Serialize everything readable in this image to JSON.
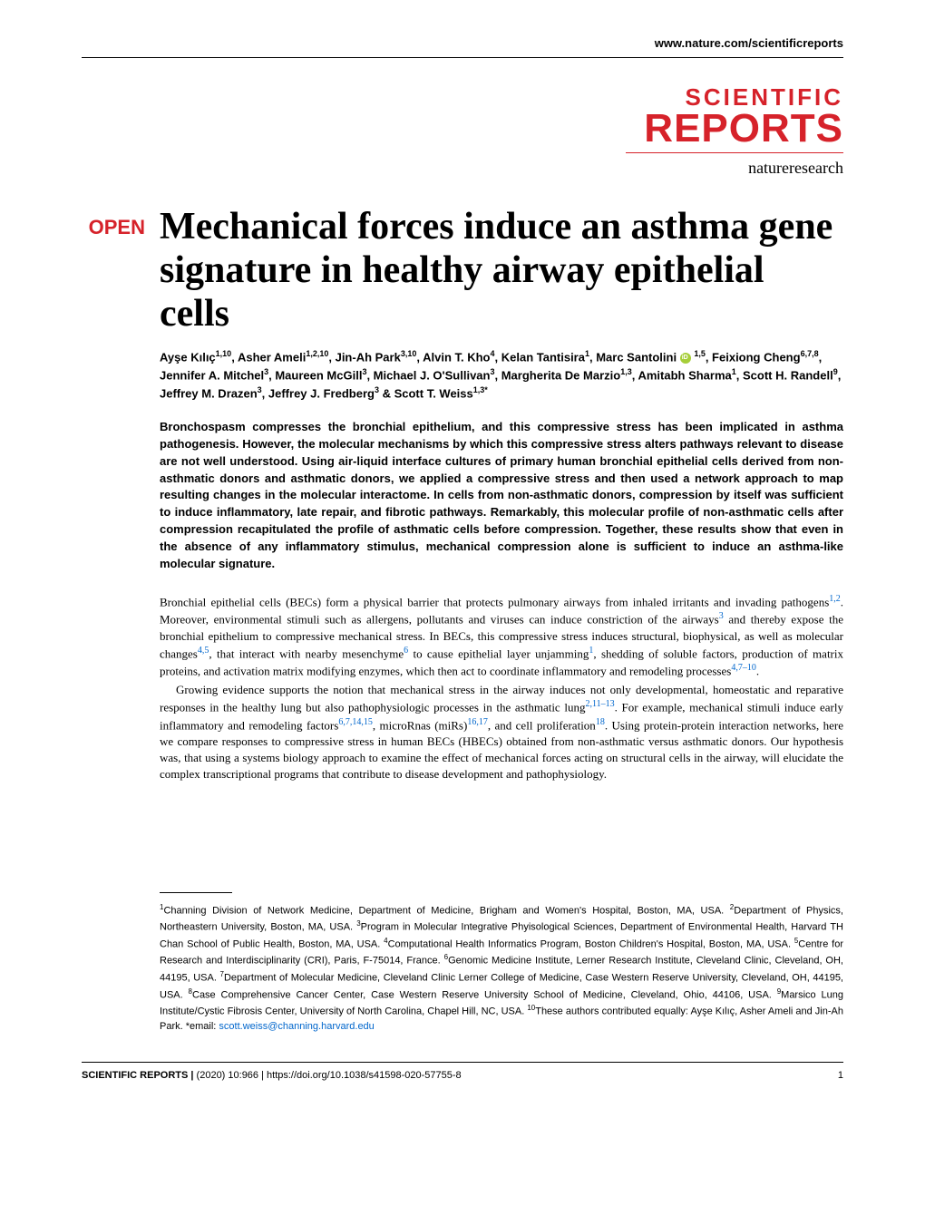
{
  "header": {
    "url": "www.nature.com/scientificreports"
  },
  "logo": {
    "line1": "SCIENTIFIC",
    "line2": "REPORTS",
    "subtitle": "natureresearch"
  },
  "badge": "OPEN",
  "title": "Mechanical forces induce an asthma gene signature in healthy airway epithelial cells",
  "authors_html": "Ayşe Kılıç<sup>1,10</sup>, Asher Ameli<sup>1,2,10</sup>, Jin-Ah Park<sup>3,10</sup>, Alvin T. Kho<sup>4</sup>, Kelan Tantisira<sup>1</sup>, Marc Santolini <span class='orcid' data-name='orcid-icon' data-interactable='false'></span> <sup>1,5</sup>, Feixiong Cheng<sup>6,7,8</sup>, Jennifer A. Mitchel<sup>3</sup>, Maureen McGill<sup>3</sup>, Michael J. O'Sullivan<sup>3</sup>, Margherita De Marzio<sup>1,3</sup>, Amitabh Sharma<sup>1</sup>, Scott H. Randell<sup>9</sup>, Jeffrey M. Drazen<sup>3</sup>, Jeffrey J. Fredberg<sup>3</sup> & Scott T. Weiss<sup>1,3*</sup>",
  "abstract": "Bronchospasm compresses the bronchial epithelium, and this compressive stress has been implicated in asthma pathogenesis. However, the molecular mechanisms by which this compressive stress alters pathways relevant to disease are not well understood. Using air-liquid interface cultures of primary human bronchial epithelial cells derived from non-asthmatic donors and asthmatic donors, we applied a compressive stress and then used a network approach to map resulting changes in the molecular interactome. In cells from non-asthmatic donors, compression by itself was sufficient to induce inflammatory, late repair, and fibrotic pathways. Remarkably, this molecular profile of non-asthmatic cells after compression recapitulated the profile of asthmatic cells before compression. Together, these results show that even in the absence of any inflammatory stimulus, mechanical compression alone is sufficient to induce an asthma-like molecular signature.",
  "body": {
    "p1": "Bronchial epithelial cells (BECs) form a physical barrier that protects pulmonary airways from inhaled irritants and invading pathogens<span class='ref'>1,2</span>. Moreover, environmental stimuli such as allergens, pollutants and viruses can induce constriction of the airways<span class='ref'>3</span> and thereby expose the bronchial epithelium to compressive mechanical stress. In BECs, this compressive stress induces structural, biophysical, as well as molecular changes<span class='ref'>4,5</span>, that interact with nearby mesenchyme<span class='ref'>6</span> to cause epithelial layer unjamming<span class='ref'>1</span>, shedding of soluble factors, production of matrix proteins, and activation matrix modifying enzymes, which then act to coordinate inflammatory and remodeling processes<span class='ref'>4,7–10</span>.",
    "p2": "Growing evidence supports the notion that mechanical stress in the airway induces not only developmental, homeostatic and reparative responses in the healthy lung but also pathophysiologic processes in the asthmatic lung<span class='ref'>2,11–13</span>. For example, mechanical stimuli induce early inflammatory and remodeling factors<span class='ref'>6,7,14,15</span>, microRnas (miRs)<span class='ref'>16,17</span>, and cell proliferation<span class='ref'>18</span>. Using protein-protein interaction networks, here we compare responses to compressive stress in human BECs (HBECs) obtained from non-asthmatic versus asthmatic donors. Our hypothesis was, that using a systems biology approach to examine the effect of mechanical forces acting on structural cells in the airway, will elucidate the complex transcriptional programs that contribute to disease development and pathophysiology."
  },
  "affiliations": "<sup>1</sup>Channing Division of Network Medicine, Department of Medicine, Brigham and Women's Hospital, Boston, MA, USA. <sup>2</sup>Department of Physics, Northeastern University, Boston, MA, USA. <sup>3</sup>Program in Molecular Integrative Phyisological Sciences, Department of Environmental Health, Harvard TH Chan School of Public Health, Boston, MA, USA. <sup>4</sup>Computational Health Informatics Program, Boston Children's Hospital, Boston, MA, USA. <sup>5</sup>Centre for Research and Interdisciplinarity (CRI), Paris, F-75014, France. <sup>6</sup>Genomic Medicine Institute, Lerner Research Institute, Cleveland Clinic, Cleveland, OH, 44195, USA. <sup>7</sup>Department of Molecular Medicine, Cleveland Clinic Lerner College of Medicine, Case Western Reserve University, Cleveland, OH, 44195, USA. <sup>8</sup>Case Comprehensive Cancer Center, Case Western Reserve University School of Medicine, Cleveland, Ohio, 44106, USA. <sup>9</sup>Marsico Lung Institute/Cystic Fibrosis Center, University of North Carolina, Chapel Hill, NC, USA. <sup>10</sup>These authors contributed equally: Ayşe Kılıç, Asher Ameli and Jin-Ah Park. *email: <span class='email'>scott.weiss@channing.harvard.edu</span>",
  "footer": {
    "journal": "SCIENTIFIC REPORTS",
    "meta": "(2020) 10:966 | https://doi.org/10.1038/s41598-020-57755-8",
    "page": "1"
  },
  "colors": {
    "brand_red": "#d6222a",
    "link_blue": "#0066cc",
    "orcid_green": "#a6ce39"
  }
}
